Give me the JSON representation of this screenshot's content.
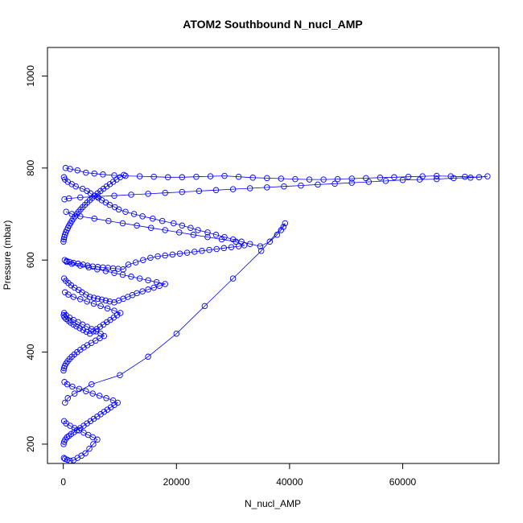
{
  "chart_data": {
    "type": "scatter",
    "title": "ATOM2 Southbound N_nucl_AMP",
    "xlabel": "N_nucl_AMP",
    "ylabel": "Pressure (mbar)",
    "x_ticks": [
      "0",
      "20000",
      "40000",
      "60000"
    ],
    "x_tick_values": [
      0,
      20000,
      40000,
      60000
    ],
    "y_ticks": [
      "200",
      "400",
      "600",
      "800",
      "1000"
    ],
    "y_tick_values": [
      200,
      400,
      600,
      800,
      1000
    ],
    "xlim": [
      -2800,
      77000
    ],
    "ylim": [
      1062,
      158
    ],
    "y_reversed": true,
    "marker": "open-circle",
    "connected": true,
    "color": "#0000ff",
    "series": [
      {
        "x": [
          120,
          300,
          800,
          1500,
          2200,
          3400,
          4200,
          4800,
          5500,
          6200,
          6800,
          7500,
          8200,
          9100,
          9800,
          11000,
          12500,
          14000,
          15800,
          17500,
          19500,
          21000,
          22500,
          23800,
          25500,
          27000,
          28500,
          30000,
          31500,
          33000,
          34800,
          36500,
          37800,
          38500,
          38900,
          39200,
          35000,
          30000,
          25000,
          20000,
          15000,
          10000,
          5000,
          2000,
          800,
          300
        ],
        "y": [
          780,
          775,
          770,
          765,
          760,
          755,
          750,
          745,
          740,
          735,
          730,
          725,
          720,
          715,
          710,
          705,
          700,
          695,
          690,
          685,
          680,
          675,
          670,
          665,
          660,
          655,
          650,
          645,
          640,
          635,
          630,
          640,
          655,
          665,
          672,
          680,
          620,
          560,
          500,
          440,
          390,
          350,
          330,
          310,
          300,
          290
        ]
      },
      {
        "x": [
          400,
          1200,
          2500,
          4000,
          5500,
          7000,
          9000,
          11000,
          13500,
          16000,
          18500,
          21000,
          23500,
          26000,
          28500,
          31000,
          33500,
          36000,
          38500,
          41000,
          43500,
          46000,
          48500,
          51000,
          53500,
          56000,
          58500,
          61000,
          63500,
          66000,
          68500,
          71000,
          73500,
          75000,
          72000,
          69000,
          66000,
          63000,
          60000,
          57000,
          54000,
          51000,
          48000,
          45000,
          42000,
          39000,
          36000,
          33000,
          30000,
          27000,
          24000,
          21000,
          18000,
          15000,
          12000,
          9000,
          6000,
          3000,
          1000,
          200
        ],
        "y": [
          800,
          798,
          795,
          790,
          788,
          786,
          784,
          783,
          782,
          781,
          780,
          780,
          781,
          782,
          783,
          781,
          779,
          778,
          777,
          776,
          775,
          775,
          776,
          777,
          778,
          779,
          780,
          781,
          782,
          783,
          782,
          781,
          780,
          782,
          779,
          778,
          776,
          775,
          774,
          772,
          770,
          768,
          766,
          764,
          762,
          760,
          758,
          756,
          754,
          752,
          750,
          748,
          746,
          744,
          742,
          740,
          738,
          736,
          734,
          732
        ]
      },
      {
        "x": [
          250,
          600,
          1100,
          1800,
          2600,
          3500,
          4300,
          5200,
          6100,
          7000,
          7900,
          8800,
          9700,
          10600,
          11500,
          12800,
          14100,
          15400,
          16700,
          18000,
          19300,
          20600,
          21900,
          23200,
          24500,
          25800,
          27100,
          28400,
          29700,
          31000,
          32000,
          30500,
          28000,
          25500,
          23000,
          20500,
          18000,
          15500,
          13000,
          10500,
          8000,
          5500,
          3000,
          1500,
          500
        ],
        "y": [
          600,
          598,
          596,
          594,
          592,
          590,
          588,
          586,
          585,
          584,
          583,
          582,
          581,
          580,
          590,
          595,
          600,
          605,
          608,
          610,
          612,
          614,
          616,
          618,
          620,
          622,
          624,
          626,
          628,
          630,
          632,
          640,
          645,
          650,
          655,
          660,
          665,
          670,
          675,
          680,
          685,
          690,
          695,
          700,
          705
        ]
      },
      {
        "x": [
          150,
          450,
          900,
          1400,
          2000,
          2700,
          3300,
          4000,
          4700,
          5400,
          6100,
          6800,
          7500,
          8200,
          9000,
          9800,
          10600,
          11400,
          12200,
          13000,
          14000,
          15000,
          16000,
          17000,
          18000,
          16500,
          15000,
          13500,
          12000,
          10500,
          9000,
          7500,
          6000,
          4500,
          3000,
          1500,
          600
        ],
        "y": [
          560,
          555,
          550,
          545,
          540,
          535,
          530,
          525,
          520,
          518,
          516,
          514,
          512,
          510,
          508,
          512,
          516,
          520,
          524,
          528,
          532,
          536,
          540,
          544,
          548,
          552,
          556,
          560,
          564,
          568,
          572,
          576,
          580,
          584,
          588,
          592,
          596
        ]
      },
      {
        "x": [
          80,
          200,
          500,
          900,
          1300,
          1800,
          2300,
          2900,
          3500,
          4100,
          4700,
          5300,
          5900,
          6500,
          7100,
          7700,
          8300,
          8900,
          9500,
          10100,
          9000,
          7800,
          6600,
          5400,
          4200,
          3000,
          1800,
          900,
          300
        ],
        "y": [
          480,
          476,
          472,
          468,
          464,
          460,
          456,
          452,
          448,
          444,
          440,
          445,
          450,
          455,
          460,
          465,
          470,
          475,
          480,
          485,
          490,
          495,
          500,
          505,
          510,
          515,
          520,
          525,
          530
        ]
      },
      {
        "x": [
          60,
          150,
          350,
          650,
          1000,
          1400,
          1900,
          2400,
          3000,
          3600,
          4200,
          4800,
          5400,
          6000,
          6600,
          7200,
          7800,
          8400,
          9000,
          9600,
          8800,
          7600,
          6400,
          5200,
          4000,
          2800,
          1600,
          700,
          200
        ],
        "y": [
          200,
          205,
          210,
          215,
          218,
          222,
          226,
          230,
          235,
          240,
          245,
          250,
          255,
          260,
          265,
          270,
          275,
          280,
          285,
          290,
          295,
          300,
          305,
          310,
          315,
          320,
          325,
          330,
          335
        ]
      },
      {
        "x": [
          50,
          120,
          260,
          480,
          760,
          1100,
          1500,
          1950,
          2450,
          3000,
          3600,
          4250,
          4950,
          5700,
          6450,
          7200,
          6600,
          5800,
          5000,
          4200,
          3400,
          2600,
          1800,
          1100,
          500,
          150
        ],
        "y": [
          360,
          365,
          370,
          375,
          380,
          385,
          390,
          395,
          400,
          405,
          410,
          415,
          420,
          425,
          430,
          435,
          440,
          445,
          450,
          455,
          460,
          465,
          470,
          475,
          480,
          485
        ]
      },
      {
        "x": [
          100,
          300,
          700,
          1200,
          1800,
          2500,
          3200,
          3900,
          4600,
          5300,
          6000,
          5200,
          4400,
          3600,
          2800,
          2000,
          1200,
          500,
          150
        ],
        "y": [
          170,
          168,
          166,
          164,
          165,
          170,
          175,
          180,
          190,
          200,
          210,
          215,
          220,
          225,
          230,
          235,
          240,
          245,
          250
        ]
      },
      {
        "x": [
          30,
          90,
          180,
          300,
          450,
          620,
          810,
          1020,
          1250,
          1500,
          1770,
          2060,
          2370,
          2700,
          3050,
          3420,
          3810,
          4220,
          4650,
          5100,
          5570,
          6060,
          6570,
          7100,
          7650,
          8220,
          8810,
          9420,
          10050,
          10700
        ],
        "y": [
          640,
          645,
          650,
          655,
          660,
          665,
          670,
          675,
          680,
          685,
          690,
          695,
          700,
          705,
          710,
          715,
          720,
          725,
          730,
          735,
          740,
          745,
          750,
          755,
          760,
          765,
          770,
          775,
          780,
          785
        ]
      }
    ]
  }
}
